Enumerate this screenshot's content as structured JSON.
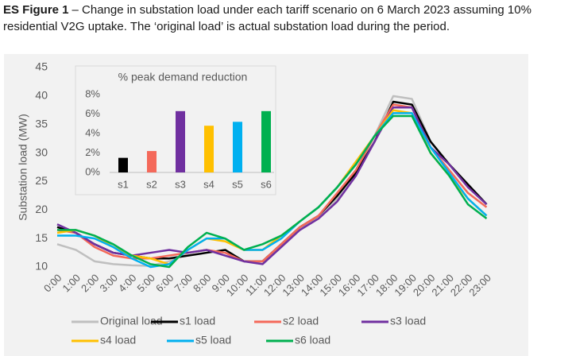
{
  "caption": {
    "label": "ES Figure 1",
    "lines": [
      "– Change in substation load under each tariff scenario on 6 March 2023 assuming 10%",
      "residential V2G uptake. The ‘original load’ is actual substation load during the period."
    ]
  },
  "chart_data": [
    {
      "type": "line",
      "ylabel": "Substation load (MW)",
      "categories": [
        "0:00",
        "1:00",
        "2:00",
        "3:00",
        "4:00",
        "5:00",
        "6:00",
        "7:00",
        "8:00",
        "9:00",
        "10:00",
        "11:00",
        "12:00",
        "13:00",
        "14:00",
        "15:00",
        "16:00",
        "17:00",
        "18:00",
        "19:00",
        "20:00",
        "21:00",
        "22:00",
        "23:00"
      ],
      "ylim": [
        10,
        45
      ],
      "yticks": [
        10,
        15,
        20,
        25,
        30,
        35,
        40,
        45
      ],
      "grid": false,
      "series": [
        {
          "name": "Original load",
          "color": "#bfbfbf",
          "values": [
            14,
            13,
            11,
            10.5,
            10.3,
            10.2,
            11,
            12.5,
            13,
            12.5,
            11,
            11,
            14,
            16.5,
            19,
            22,
            27,
            33,
            40,
            39.5,
            32,
            28,
            24.5,
            21
          ]
        },
        {
          "name": "s1 load",
          "color": "#000000",
          "values": [
            17,
            16,
            14,
            12.5,
            12,
            11.5,
            11.5,
            12,
            12.5,
            13,
            11,
            11,
            14,
            17,
            19,
            22.5,
            26.5,
            32,
            39,
            38.5,
            32,
            28,
            24.5,
            21
          ]
        },
        {
          "name": "s2 load",
          "color": "#f4695a",
          "values": [
            16.5,
            16,
            13.5,
            12,
            11.5,
            11.5,
            12,
            12.5,
            13,
            12.5,
            11,
            11,
            14,
            17,
            19,
            23,
            27,
            33,
            38.5,
            38,
            31,
            27,
            23,
            20.5
          ]
        },
        {
          "name": "s3 load",
          "color": "#7030a0",
          "values": [
            17.5,
            16,
            14,
            12.5,
            12,
            12.5,
            13,
            12.5,
            13,
            12,
            11,
            10.5,
            13.5,
            16.5,
            18.5,
            21.5,
            26,
            32,
            38,
            38,
            31,
            28,
            24,
            21
          ]
        },
        {
          "name": "s4 load",
          "color": "#ffc000",
          "values": [
            16,
            16.5,
            15.5,
            13.5,
            12,
            11.5,
            10.5,
            13,
            15,
            14.5,
            13,
            13,
            15.5,
            18,
            20.5,
            24,
            28.5,
            33,
            37.5,
            37,
            30,
            26,
            22,
            19
          ]
        },
        {
          "name": "s5 load",
          "color": "#00b0f0",
          "values": [
            15.5,
            15.5,
            15,
            13.5,
            11.5,
            10,
            10.5,
            13,
            15,
            15,
            13,
            13,
            15,
            18,
            20.5,
            24,
            28,
            33,
            37,
            37,
            31,
            26.5,
            22,
            19
          ]
        },
        {
          "name": "s6 load",
          "color": "#00b050",
          "values": [
            16.5,
            16.5,
            15.5,
            14,
            12,
            10.5,
            10,
            13.5,
            16,
            15,
            13,
            14,
            15.5,
            18,
            20.5,
            24,
            28,
            33,
            36.5,
            36.5,
            30,
            26,
            21,
            18.5
          ]
        }
      ]
    },
    {
      "type": "bar",
      "title": "% peak demand reduction",
      "categories": [
        "s1",
        "s2",
        "s3",
        "s4",
        "s5",
        "s6"
      ],
      "values": [
        1.5,
        2.2,
        6.3,
        4.8,
        5.2,
        6.3
      ],
      "colors": [
        "#000000",
        "#f4695a",
        "#7030a0",
        "#ffc000",
        "#00b0f0",
        "#00b050"
      ],
      "ylim": [
        0,
        8
      ],
      "yticks": [
        {
          "value": 0,
          "label": "0%"
        },
        {
          "value": 2,
          "label": "2%"
        },
        {
          "value": 4,
          "label": "4%"
        },
        {
          "value": 6,
          "label": "6%"
        },
        {
          "value": 8,
          "label": "8%"
        }
      ]
    }
  ]
}
